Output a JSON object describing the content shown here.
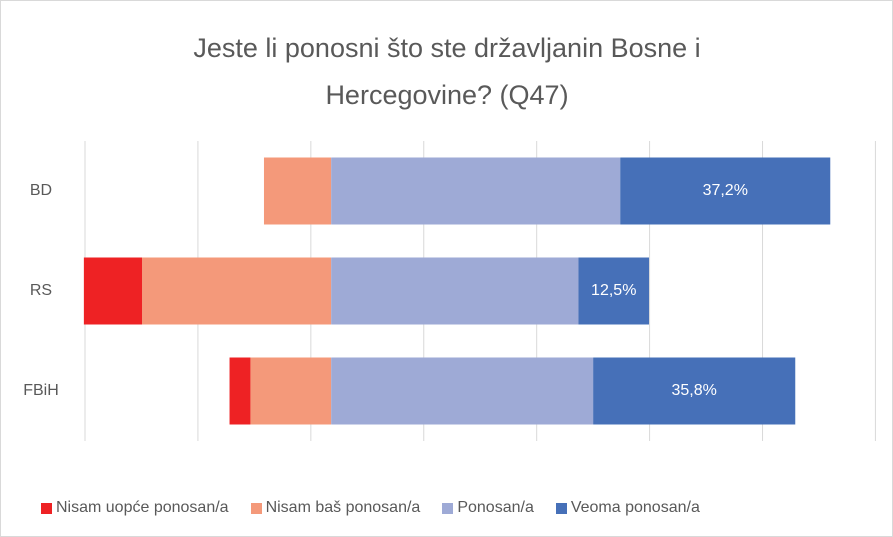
{
  "chart_data": {
    "type": "diverging-bar",
    "title": "Jeste li ponosni što ste državljanin Bosne i Hercegovine? (Q47)",
    "categories": [
      "BD",
      "RS",
      "FBiH"
    ],
    "series": [
      {
        "name": "Nisam uopće ponosan/a",
        "color": "#ee2224",
        "values": [
          0,
          10.3,
          3.7
        ]
      },
      {
        "name": "Nisam baš ponosan/a",
        "color": "#f4997a",
        "values": [
          11.9,
          33.5,
          14.3
        ]
      },
      {
        "name": "Ponosan/a",
        "color": "#9eaad6",
        "values": [
          51.2,
          43.8,
          46.4
        ]
      },
      {
        "name": "Veoma ponosan/a",
        "color": "#4670b8",
        "values": [
          37.2,
          12.5,
          35.8
        ],
        "value_labels": [
          "37,2%",
          "12,5%",
          "35,8%"
        ]
      }
    ],
    "xlim": [
      -43.6,
      96.5
    ],
    "xticks": [
      -43.6,
      -23.6,
      -3.6,
      16.4,
      36.4,
      56.4,
      76.4,
      96.4
    ],
    "grid": true
  }
}
